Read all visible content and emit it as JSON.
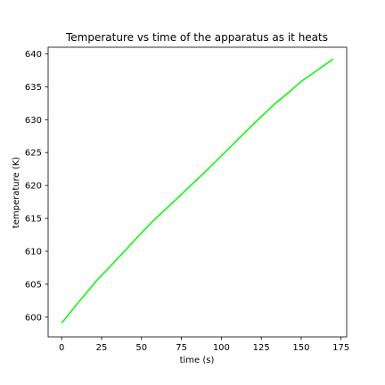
{
  "chart_data": {
    "type": "line",
    "title": "Temperature vs time of the apparatus as it heats",
    "xlabel": "time (s)",
    "ylabel": "temperature (K)",
    "xlim": [
      -8.5,
      178.5
    ],
    "ylim": [
      597.0,
      641.0
    ],
    "xticks": [
      0,
      25,
      50,
      75,
      100,
      125,
      150,
      175
    ],
    "yticks": [
      600,
      605,
      610,
      615,
      620,
      625,
      630,
      635,
      640
    ],
    "grid": false,
    "legend": "none",
    "series": [
      {
        "color": "#00ff00",
        "x": [
          0,
          10,
          22,
          30,
          40,
          50,
          58,
          70,
          80,
          90,
          100,
          110,
          120,
          133,
          143,
          150,
          160,
          170
        ],
        "y": [
          599.1,
          602.1,
          605.6,
          607.6,
          610.2,
          612.8,
          614.8,
          617.5,
          619.8,
          622.1,
          624.5,
          626.9,
          629.3,
          632.3,
          634.3,
          635.8,
          637.5,
          639.2
        ]
      }
    ]
  }
}
